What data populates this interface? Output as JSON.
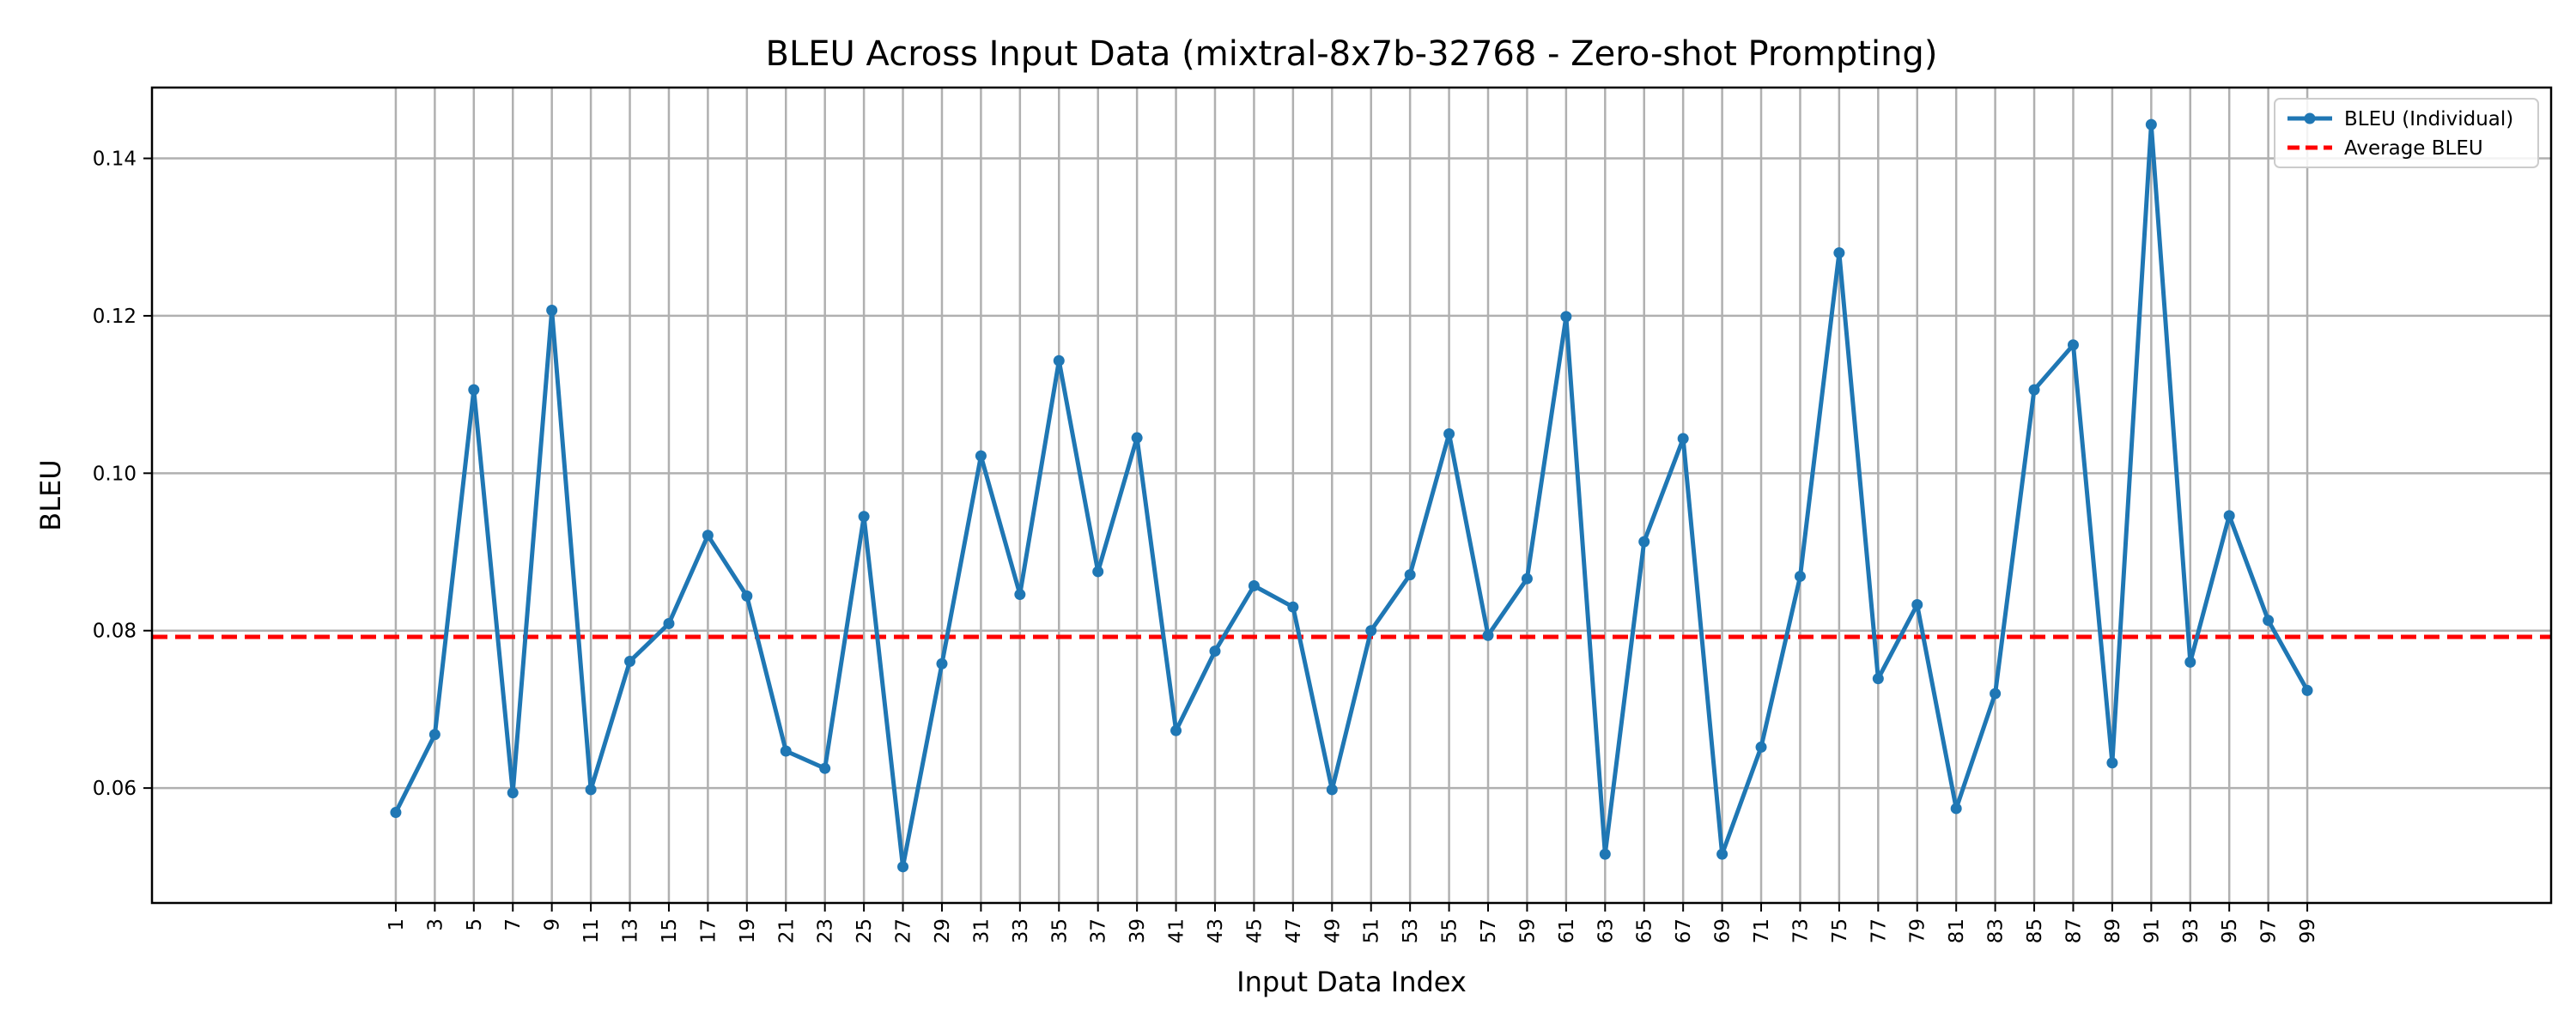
{
  "chart_data": {
    "type": "line",
    "title": "BLEU Across Input Data (mixtral-8x7b-32768 - Zero-shot Prompting)",
    "xlabel": "Input Data Index",
    "ylabel": "BLEU",
    "x": [
      1,
      3,
      5,
      7,
      9,
      11,
      13,
      15,
      17,
      19,
      21,
      23,
      25,
      27,
      29,
      31,
      33,
      35,
      37,
      39,
      41,
      43,
      45,
      47,
      49,
      51,
      53,
      55,
      57,
      59,
      61,
      63,
      65,
      67,
      69,
      71,
      73,
      75,
      77,
      79,
      81,
      83,
      85,
      87,
      89,
      91,
      93,
      95,
      97,
      99
    ],
    "xticks": [
      "1",
      "3",
      "5",
      "7",
      "9",
      "11",
      "13",
      "15",
      "17",
      "19",
      "21",
      "23",
      "25",
      "27",
      "29",
      "31",
      "33",
      "35",
      "37",
      "39",
      "41",
      "43",
      "45",
      "47",
      "49",
      "51",
      "53",
      "55",
      "57",
      "59",
      "61",
      "63",
      "65",
      "67",
      "69",
      "71",
      "73",
      "75",
      "77",
      "79",
      "81",
      "83",
      "85",
      "87",
      "89",
      "91",
      "93",
      "95",
      "97",
      "99"
    ],
    "yticks": [
      "0.06",
      "0.08",
      "0.10",
      "0.12",
      "0.14"
    ],
    "ytick_values": [
      0.06,
      0.08,
      0.1,
      0.12,
      0.14
    ],
    "xlim": [
      -11.5,
      111.5
    ],
    "ylim": [
      0.0454,
      0.149
    ],
    "grid": true,
    "legend_position": "top-right",
    "series": [
      {
        "name": "BLEU (Individual)",
        "color": "#1f77b4",
        "style": "solid-with-markers",
        "values": [
          0.0569,
          0.0668,
          0.1106,
          0.0594,
          0.1207,
          0.0598,
          0.0761,
          0.0809,
          0.0921,
          0.0844,
          0.0647,
          0.0625,
          0.0945,
          0.05,
          0.0758,
          0.1022,
          0.0846,
          0.1143,
          0.0875,
          0.1045,
          0.0673,
          0.0774,
          0.0857,
          0.083,
          0.0598,
          0.08,
          0.0871,
          0.105,
          0.0794,
          0.0866,
          0.1199,
          0.0516,
          0.0913,
          0.1044,
          0.0516,
          0.0652,
          0.0869,
          0.128,
          0.0739,
          0.0833,
          0.0574,
          0.072,
          0.1106,
          0.1163,
          0.0632,
          0.1443,
          0.076,
          0.0946,
          0.0813,
          0.0724
        ]
      },
      {
        "name": "Average BLEU",
        "color": "#ff0000",
        "style": "dashed",
        "value": 0.0792
      }
    ]
  }
}
